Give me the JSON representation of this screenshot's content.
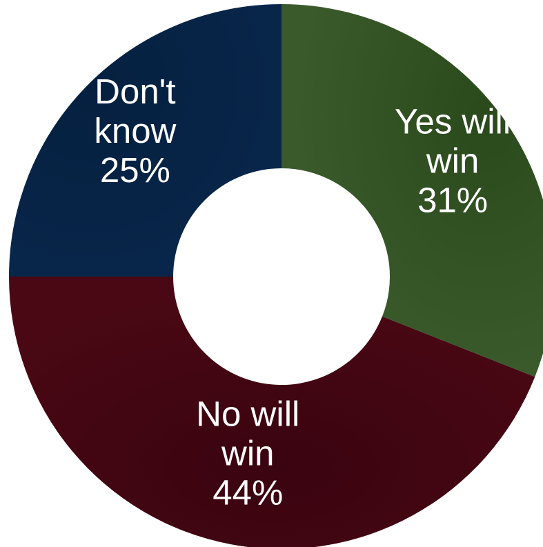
{
  "chart_data": {
    "type": "pie",
    "variant": "donut",
    "slices": [
      {
        "label_lines": [
          "Yes will",
          "win"
        ],
        "percent_text": "31%",
        "value": 31,
        "color": "#2f4f22"
      },
      {
        "label_lines": [
          "No will",
          "win"
        ],
        "percent_text": "44%",
        "value": 44,
        "color": "#3f0510"
      },
      {
        "label_lines": [
          "Don't",
          "know"
        ],
        "percent_text": "25%",
        "value": 25,
        "color": "#062040"
      }
    ],
    "start_angle_deg": 0,
    "direction": "clockwise",
    "legend": "none"
  }
}
